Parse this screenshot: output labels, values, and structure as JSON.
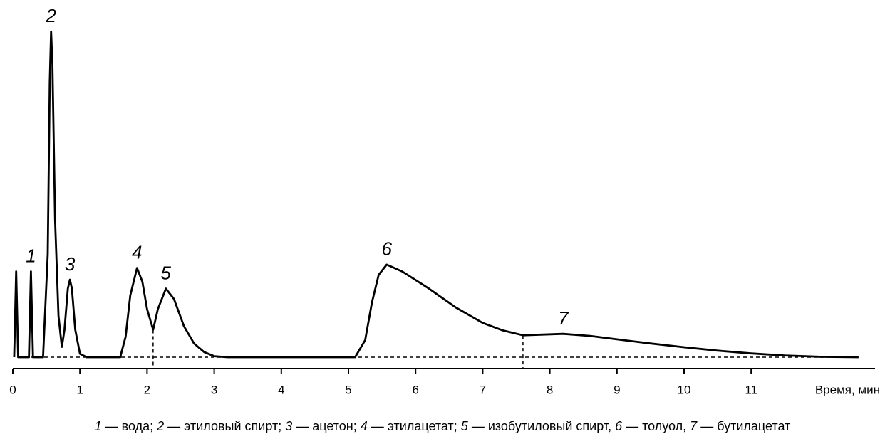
{
  "chart_data": {
    "type": "line",
    "xlabel": "Время, мин",
    "xlim": [
      0,
      12.8
    ],
    "xticks": [
      0,
      1,
      2,
      3,
      4,
      5,
      6,
      7,
      8,
      9,
      10,
      11
    ],
    "ylim": [
      0,
      100
    ],
    "series": [
      {
        "color": "#000000",
        "x": [
          0.02,
          0.05,
          0.08,
          0.24,
          0.27,
          0.3,
          0.45,
          0.52,
          0.55,
          0.57,
          0.59,
          0.63,
          0.68,
          0.73,
          0.77,
          0.82,
          0.85,
          0.88,
          0.93,
          1.0,
          1.1,
          1.6,
          1.68,
          1.75,
          1.85,
          1.93,
          2.0,
          2.09,
          2.16,
          2.28,
          2.4,
          2.55,
          2.7,
          2.85,
          3.0,
          3.2,
          5.1,
          5.25,
          5.35,
          5.45,
          5.57,
          5.8,
          6.2,
          6.6,
          7.0,
          7.3,
          7.6,
          7.9,
          8.2,
          8.6,
          9.0,
          9.5,
          10.0,
          10.5,
          11.0,
          11.5,
          12.0,
          12.6
        ],
        "values": [
          0,
          25,
          0,
          0,
          25,
          0,
          0,
          30,
          80,
          95,
          85,
          40,
          12,
          3,
          8,
          20,
          22.6,
          20,
          8,
          1,
          0,
          0,
          6,
          18,
          26,
          22,
          14,
          8,
          14,
          20,
          17,
          9,
          4,
          1.5,
          0.3,
          0,
          0,
          5,
          16,
          24,
          27,
          25,
          20,
          14.5,
          10,
          7.8,
          6.4,
          6.6,
          6.8,
          6.2,
          5.2,
          4,
          2.9,
          1.9,
          1.1,
          0.5,
          0.15,
          0
        ]
      }
    ],
    "droplines": [
      2.09,
      7.6
    ],
    "annotations": [
      {
        "text": "1",
        "x": 0.27,
        "y": 25
      },
      {
        "text": "2",
        "x": 0.57,
        "y": 95
      },
      {
        "text": "3",
        "x": 0.85,
        "y": 22.6
      },
      {
        "text": "4",
        "x": 1.85,
        "y": 26
      },
      {
        "text": "5",
        "x": 2.28,
        "y": 20
      },
      {
        "text": "6",
        "x": 5.57,
        "y": 27
      },
      {
        "text": "7",
        "x": 8.2,
        "y": 6.8
      }
    ],
    "caption": [
      {
        "number": "1",
        "text": " — вода; "
      },
      {
        "number": "2",
        "text": " — этиловый спирт; "
      },
      {
        "number": "3",
        "text": " — ацетон; "
      },
      {
        "number": "4",
        "text": " — этилацетат; "
      },
      {
        "number": "5",
        "text": " — изобутиловый спирт, "
      },
      {
        "number": "6",
        "text": " — толуол, "
      },
      {
        "number": "7",
        "text": " — бутилацетат"
      }
    ]
  }
}
